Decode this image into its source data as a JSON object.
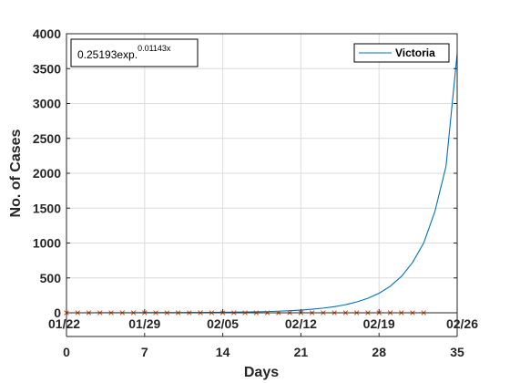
{
  "chart_data": {
    "type": "line",
    "xlabel": "Days",
    "ylabel": "No. of Cases",
    "xlim": [
      0,
      35
    ],
    "ylim": [
      0,
      4000
    ],
    "x_ticks": [
      0,
      7,
      14,
      21,
      28,
      35
    ],
    "y_ticks": [
      0,
      500,
      1000,
      1500,
      2000,
      2500,
      3000,
      3500,
      4000
    ],
    "top_tick_labels": [
      "01/22",
      "01/29",
      "02/05",
      "02/12",
      "02/19",
      "02/26"
    ],
    "grid": true,
    "legend": {
      "position": "top-right",
      "entries": [
        "Victoria"
      ]
    },
    "annotation": {
      "text": "0.25193exp.",
      "superscript": "0.01143x"
    },
    "series": [
      {
        "name": "Victoria",
        "style": "line",
        "color": "#0072BD",
        "x": [
          0,
          1,
          2,
          3,
          4,
          5,
          6,
          7,
          8,
          9,
          10,
          11,
          12,
          13,
          14,
          15,
          16,
          17,
          18,
          19,
          20,
          21,
          22,
          23,
          24,
          25,
          26,
          27,
          28,
          29,
          30,
          31,
          32,
          33,
          34,
          35
        ],
        "y": [
          0,
          0,
          0,
          1,
          1,
          1,
          1,
          2,
          2,
          3,
          3,
          4,
          5,
          6,
          7,
          9,
          11,
          14,
          18,
          23,
          30,
          39,
          51,
          67,
          88,
          116,
          155,
          208,
          280,
          380,
          520,
          720,
          1000,
          1450,
          2100,
          3720
        ]
      },
      {
        "style": "markers",
        "marker": "x",
        "color": "#D95319",
        "x": [
          0,
          1,
          2,
          3,
          4,
          5,
          6,
          7,
          8,
          9,
          10,
          11,
          12,
          13,
          14,
          15,
          16,
          17,
          18,
          19,
          20,
          21,
          22,
          23,
          24,
          25,
          26,
          27,
          28,
          29,
          30,
          31,
          32
        ],
        "y": [
          0,
          0,
          0,
          0,
          0,
          0,
          0,
          0,
          0,
          0,
          0,
          0,
          0,
          0,
          0,
          0,
          0,
          0,
          0,
          0,
          0,
          0,
          0,
          0,
          0,
          0,
          0,
          0,
          0,
          0,
          0,
          0,
          0
        ]
      }
    ]
  }
}
